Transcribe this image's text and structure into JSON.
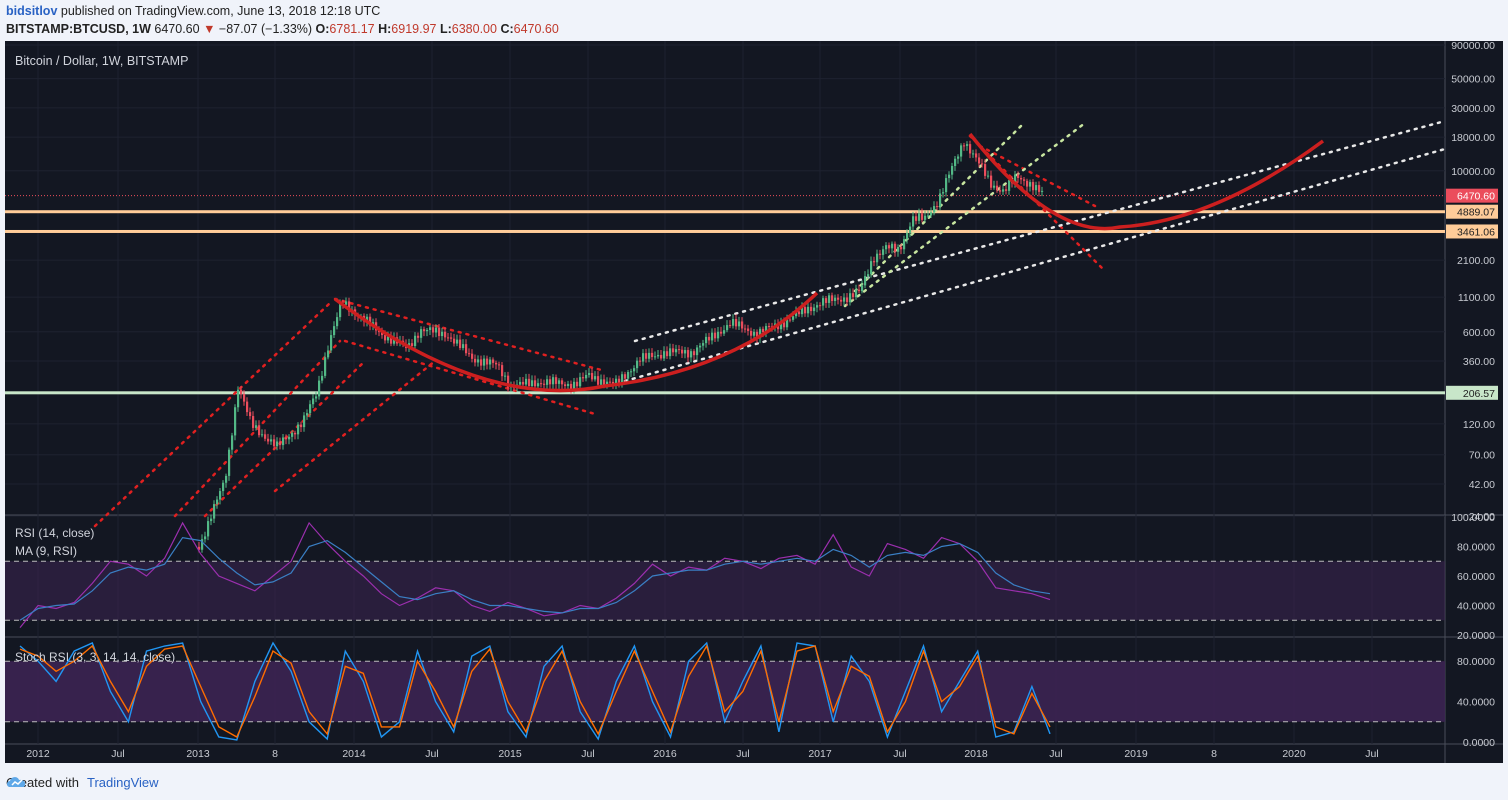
{
  "header": {
    "user": "bidsitlov",
    "published": "published on TradingView.com, June 13, 2018 12:18 UTC",
    "symbol": "BITSTAMP:BTCUSD, 1W",
    "last": "6470.60",
    "change": "−87.07 (−1.33%)",
    "o_label": "O:",
    "o_val": "6781.17",
    "h_label": "H:",
    "h_val": "6919.97",
    "l_label": "L:",
    "l_val": "6380.00",
    "c_label": "C:",
    "c_val": "6470.60"
  },
  "footer": {
    "created": "Created with",
    "brand": "TradingView"
  },
  "colors": {
    "bg": "#131722",
    "up": "#53b987",
    "down": "#eb4d5c",
    "rsi": "#9b2fae",
    "ma": "#3a7fc4",
    "stoch_k": "#2196f3",
    "stoch_d": "#ff6d00",
    "curve": "#cc1f1f",
    "hline": "#ffcc99",
    "hline_low": "#c8e6c9",
    "band": "#3c2452"
  },
  "chart_data": [
    {
      "type": "candlestick",
      "title": "Bitcoin / Dollar, 1W, BITSTAMP",
      "y_scale": "log",
      "y_ticks": [
        "90000.00",
        "50000.00",
        "30000.00",
        "18000.00",
        "10000.00",
        "6470.60",
        "4889.07",
        "3461.06",
        "2100.00",
        "1100.00",
        "600.00",
        "360.00",
        "206.57",
        "120.00",
        "70.00",
        "42.00",
        "24.00"
      ],
      "x_ticks": [
        "2012",
        "Jul",
        "2013",
        "8",
        "2014",
        "Jul",
        "2015",
        "Jul",
        "2016",
        "Jul",
        "2017",
        "Jul",
        "2018",
        "Jul",
        "2019",
        "8",
        "2020",
        "Jul"
      ],
      "horizontal_levels": [
        4889.07,
        3461.06,
        206.57
      ],
      "last_price": 6470.6,
      "price_path": [
        {
          "t": "2013-01",
          "p": 14
        },
        {
          "t": "2013-03",
          "p": 45
        },
        {
          "t": "2013-04",
          "p": 230
        },
        {
          "t": "2013-05",
          "p": 120
        },
        {
          "t": "2013-07",
          "p": 80
        },
        {
          "t": "2013-09",
          "p": 125
        },
        {
          "t": "2013-10",
          "p": 200
        },
        {
          "t": "2013-11",
          "p": 500
        },
        {
          "t": "2013-12",
          "p": 1000
        },
        {
          "t": "2014-01",
          "p": 850
        },
        {
          "t": "2014-03",
          "p": 580
        },
        {
          "t": "2014-05",
          "p": 450
        },
        {
          "t": "2014-06",
          "p": 620
        },
        {
          "t": "2014-08",
          "p": 580
        },
        {
          "t": "2014-10",
          "p": 380
        },
        {
          "t": "2014-12",
          "p": 330
        },
        {
          "t": "2015-01",
          "p": 230
        },
        {
          "t": "2015-03",
          "p": 250
        },
        {
          "t": "2015-06",
          "p": 240
        },
        {
          "t": "2015-07",
          "p": 280
        },
        {
          "t": "2015-09",
          "p": 235
        },
        {
          "t": "2015-11",
          "p": 370
        },
        {
          "t": "2016-01",
          "p": 420
        },
        {
          "t": "2016-03",
          "p": 420
        },
        {
          "t": "2016-06",
          "p": 700
        },
        {
          "t": "2016-08",
          "p": 580
        },
        {
          "t": "2016-10",
          "p": 700
        },
        {
          "t": "2016-12",
          "p": 900
        },
        {
          "t": "2017-01",
          "p": 1000
        },
        {
          "t": "2017-03",
          "p": 1100
        },
        {
          "t": "2017-04",
          "p": 1200
        },
        {
          "t": "2017-05",
          "p": 2200
        },
        {
          "t": "2017-06",
          "p": 2600
        },
        {
          "t": "2017-07",
          "p": 2500
        },
        {
          "t": "2017-08",
          "p": 4300
        },
        {
          "t": "2017-09",
          "p": 4300
        },
        {
          "t": "2017-10",
          "p": 6000
        },
        {
          "t": "2017-11",
          "p": 10000
        },
        {
          "t": "2017-12",
          "p": 17000
        },
        {
          "t": "2018-01",
          "p": 12000
        },
        {
          "t": "2018-02",
          "p": 8000
        },
        {
          "t": "2018-03",
          "p": 7000
        },
        {
          "t": "2018-04",
          "p": 9000
        },
        {
          "t": "2018-05",
          "p": 8000
        },
        {
          "t": "2018-06",
          "p": 6470.6
        }
      ],
      "projection_curve": [
        {
          "t": "2018-06",
          "p": 7000
        },
        {
          "t": "2018-11",
          "p": 4000
        },
        {
          "t": "2019-01",
          "p": 3700
        },
        {
          "t": "2019-06",
          "p": 4400
        },
        {
          "t": "2019-10",
          "p": 7300
        },
        {
          "t": "2020-04",
          "p": 17000
        }
      ]
    },
    {
      "type": "line",
      "title": "RSI (14, close)",
      "subtitle": "MA (9, RSI)",
      "ylim": [
        20,
        100
      ],
      "y_ticks": [
        "100.0000",
        "80.0000",
        "60.0000",
        "40.0000",
        "20.0000"
      ],
      "bands": [
        30,
        70
      ],
      "series": [
        {
          "name": "RSI",
          "values": [
            25,
            40,
            38,
            42,
            55,
            70,
            68,
            60,
            72,
            96,
            75,
            60,
            55,
            50,
            60,
            70,
            96,
            82,
            70,
            60,
            48,
            40,
            45,
            52,
            50,
            40,
            36,
            42,
            38,
            33,
            35,
            40,
            38,
            45,
            55,
            68,
            60,
            66,
            64,
            72,
            70,
            65,
            72,
            74,
            68,
            88,
            66,
            60,
            82,
            78,
            72,
            86,
            82,
            70,
            52,
            50,
            48,
            44
          ]
        },
        {
          "name": "MA",
          "values": [
            30,
            38,
            40,
            41,
            50,
            62,
            66,
            64,
            68,
            86,
            84,
            72,
            62,
            54,
            56,
            62,
            80,
            84,
            76,
            66,
            56,
            46,
            44,
            48,
            50,
            44,
            40,
            40,
            38,
            36,
            35,
            38,
            38,
            42,
            50,
            60,
            62,
            64,
            64,
            68,
            70,
            68,
            70,
            72,
            70,
            78,
            74,
            66,
            74,
            76,
            74,
            80,
            82,
            76,
            62,
            54,
            50,
            48
          ]
        }
      ]
    },
    {
      "type": "line",
      "title": "Stoch RSI (3, 3, 14, 14, close)",
      "ylim": [
        0,
        100
      ],
      "y_ticks": [
        "80.0000",
        "40.0000",
        "0.0000"
      ],
      "bands": [
        20,
        80
      ],
      "series": [
        {
          "name": "K",
          "values": [
            95,
            80,
            60,
            90,
            98,
            50,
            20,
            90,
            95,
            98,
            40,
            5,
            2,
            60,
            98,
            70,
            20,
            3,
            90,
            60,
            5,
            20,
            90,
            40,
            10,
            85,
            95,
            30,
            5,
            75,
            95,
            30,
            3,
            60,
            95,
            40,
            5,
            80,
            98,
            20,
            60,
            95,
            10,
            98,
            95,
            20,
            85,
            60,
            5,
            50,
            95,
            30,
            60,
            90,
            5,
            10,
            55,
            8
          ]
        },
        {
          "name": "D",
          "values": [
            92,
            85,
            70,
            80,
            95,
            60,
            30,
            75,
            92,
            95,
            55,
            15,
            5,
            45,
            90,
            78,
            30,
            8,
            75,
            68,
            15,
            15,
            80,
            50,
            15,
            70,
            92,
            40,
            10,
            60,
            90,
            40,
            8,
            50,
            90,
            50,
            10,
            65,
            95,
            30,
            50,
            90,
            20,
            90,
            95,
            30,
            75,
            65,
            10,
            40,
            90,
            40,
            55,
            85,
            15,
            8,
            48,
            15
          ]
        }
      ]
    }
  ]
}
